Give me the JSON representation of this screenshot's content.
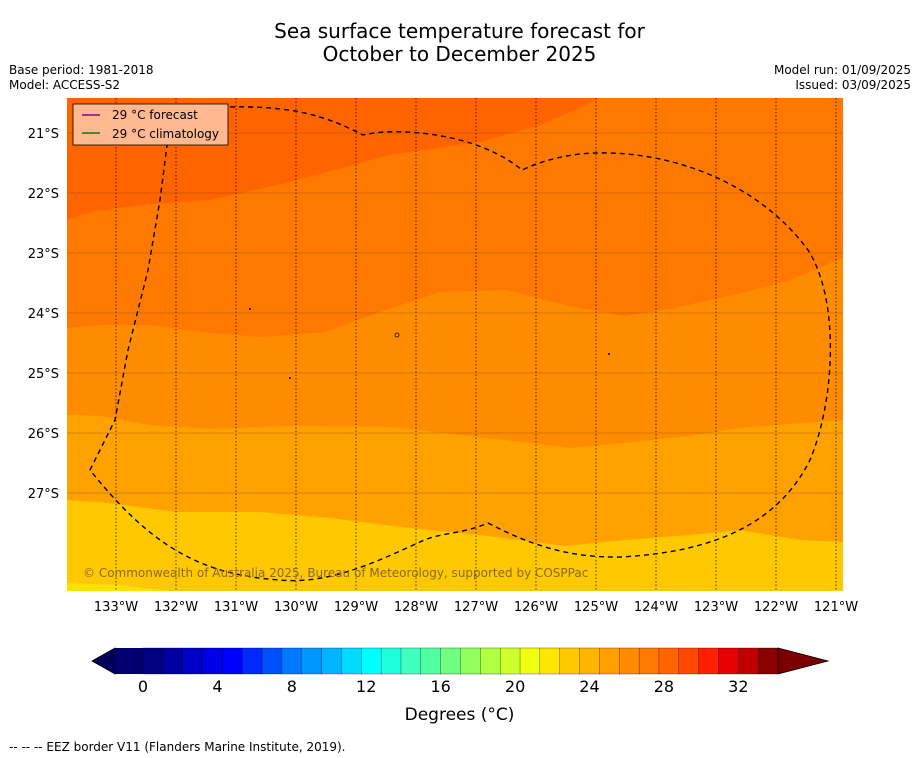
{
  "title": {
    "line1": "Sea surface temperature forecast for",
    "line2": "October to December 2025"
  },
  "meta": {
    "base_period": "Base period: 1981-2018",
    "model": "Model: ACCESS-S2",
    "model_run": "Model run: 01/09/2025",
    "issued": "Issued: 03/09/2025"
  },
  "legend": [
    {
      "label": "29 °C  forecast",
      "color": "#8b008b"
    },
    {
      "label": "29 °C  climatology",
      "color": "#008000"
    }
  ],
  "axes": {
    "lat_labels": [
      "21°S",
      "22°S",
      "23°S",
      "24°S",
      "25°S",
      "26°S",
      "27°S"
    ],
    "lon_labels": [
      "133°W",
      "132°W",
      "131°W",
      "130°W",
      "129°W",
      "128°W",
      "127°W",
      "126°W",
      "125°W",
      "124°W",
      "123°W",
      "122°W",
      "121°W"
    ]
  },
  "map_colors": {
    "band_27_28": "#ff6400",
    "band_26_27": "#ff7800",
    "band_25_26": "#ff8c00",
    "band_24_25": "#ffa200",
    "band_23_24": "#ffc800"
  },
  "copyright": "© Commonwealth of Australia 2025, Bureau of Meteorology, supported by COSPPac",
  "colorbar": {
    "title": "Degrees (°C)",
    "ticks": [
      "0",
      "4",
      "8",
      "12",
      "16",
      "20",
      "24",
      "28",
      "32"
    ],
    "min": -2,
    "max": 34,
    "colors": [
      "#000080",
      "#0000a0",
      "#0000c8",
      "#0000e6",
      "#0000ff",
      "#0028ff",
      "#0050ff",
      "#0078ff",
      "#0096ff",
      "#00b4ff",
      "#00dcff",
      "#00ffff",
      "#20ffdc",
      "#40ffc0",
      "#50ffa0",
      "#70ff80",
      "#90ff60",
      "#b0ff40",
      "#d0ff30",
      "#f0ff10",
      "#ffe600",
      "#ffc800",
      "#ffb400",
      "#ffa000",
      "#ff8c00",
      "#ff7800",
      "#ff6400",
      "#ff4800",
      "#ff2000",
      "#e60000",
      "#c00000",
      "#8b0000"
    ]
  },
  "footnote": "--  --  -- EEZ border V11 (Flanders Marine Institute, 2019)."
}
